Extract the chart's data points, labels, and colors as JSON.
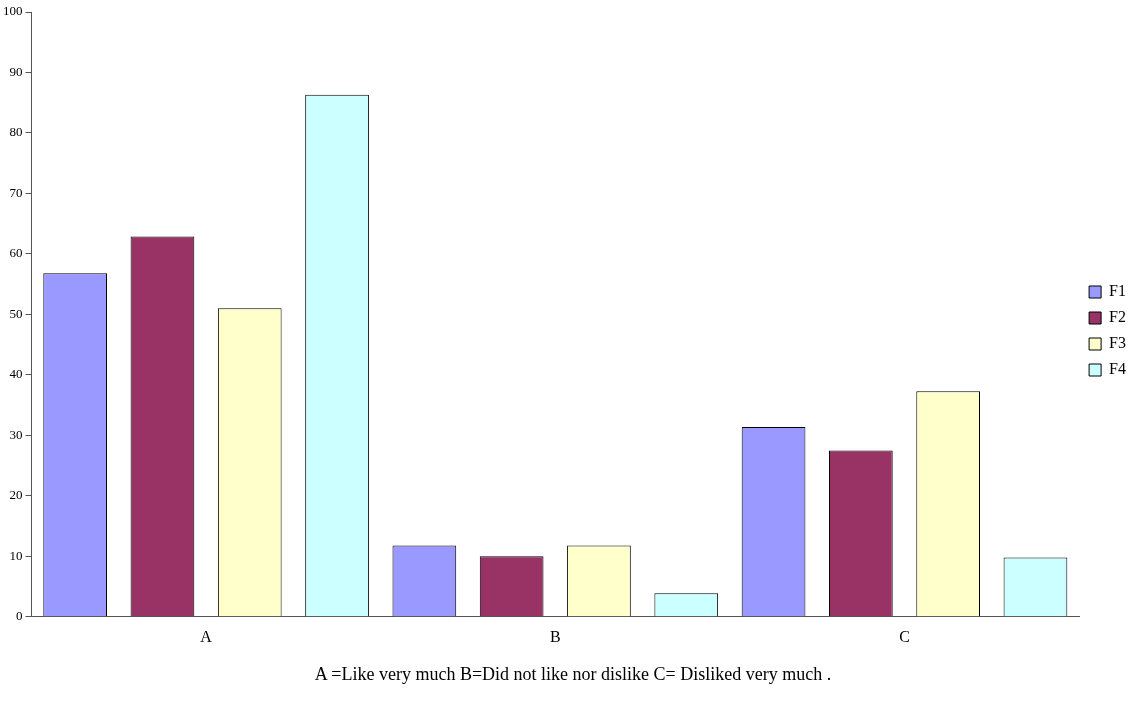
{
  "chart_data": {
    "type": "bar",
    "categories": [
      "A",
      "B",
      "C"
    ],
    "series": [
      {
        "name": "F1",
        "color": "#9999ff",
        "values": [
          56.8,
          11.8,
          31.4
        ]
      },
      {
        "name": "F2",
        "color": "#993366",
        "values": [
          62.9,
          10,
          27.5
        ]
      },
      {
        "name": "F3",
        "color": "#ffffcc",
        "values": [
          51,
          11.8,
          37.3
        ]
      },
      {
        "name": "F4",
        "color": "#ccffff",
        "values": [
          86.3,
          3.9,
          9.8
        ]
      }
    ],
    "ylim": [
      0,
      100
    ],
    "yticks": [
      0,
      10,
      20,
      30,
      40,
      50,
      60,
      70,
      80,
      90,
      100
    ],
    "grid": false,
    "legend": "right",
    "annotations": [
      "A =Like very much B=Did not like nor dislike  C= Disliked very much ."
    ]
  }
}
